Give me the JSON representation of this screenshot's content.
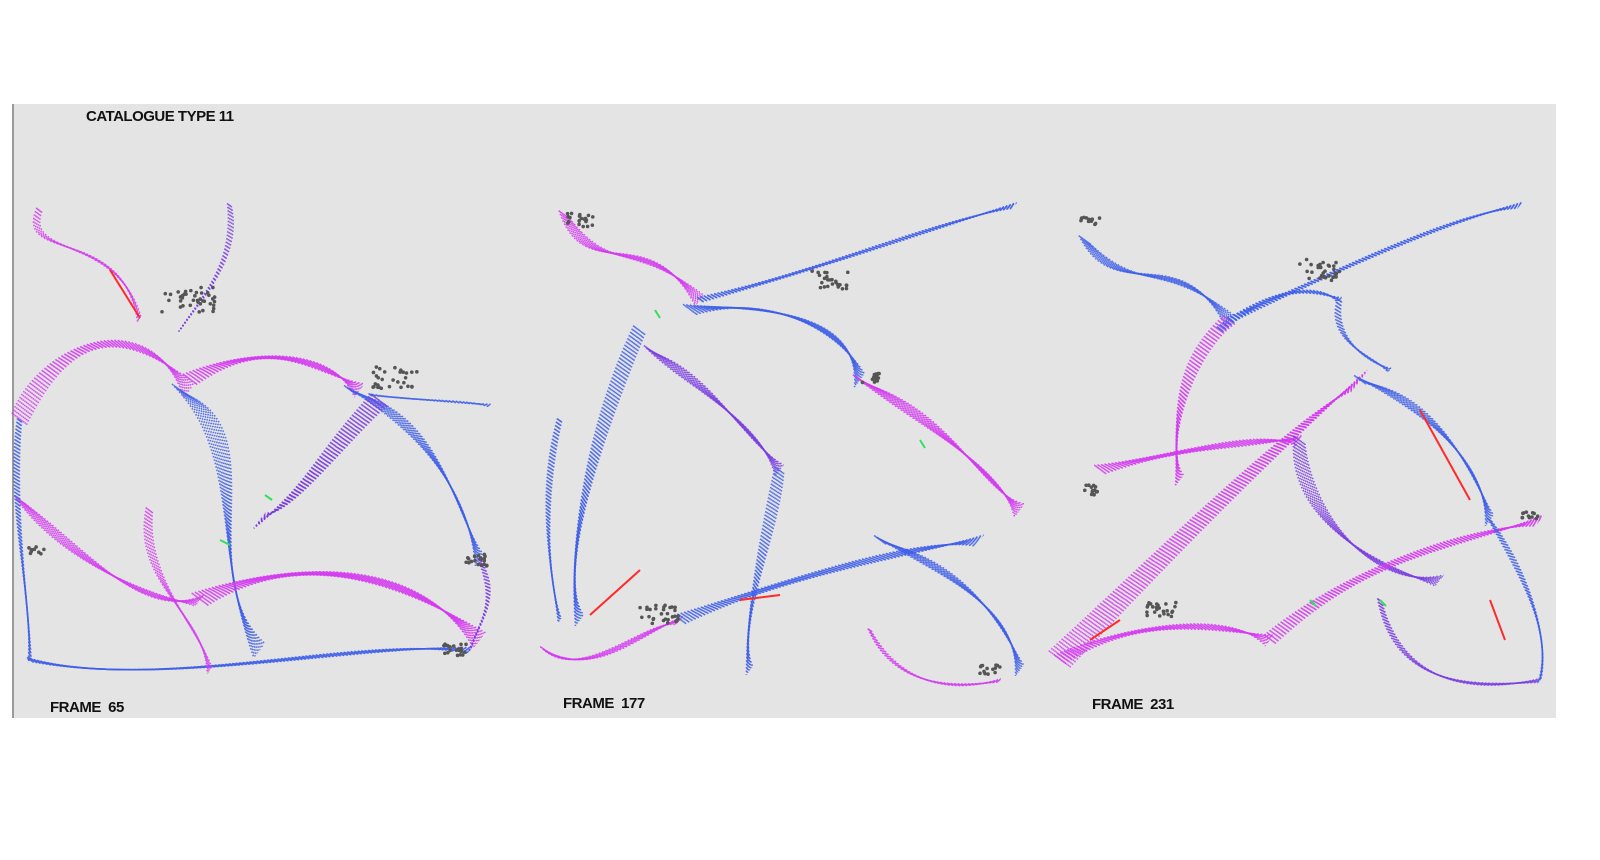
{
  "catalogue": {
    "title": "CATALOGUE TYPE 11"
  },
  "frames": [
    {
      "label": "FRAME  65"
    },
    {
      "label": "FRAME  177"
    },
    {
      "label": "FRAME  231"
    }
  ],
  "colors": {
    "background": "#e4e4e4",
    "blue": "#3f5fe8",
    "violet": "#7a3ce0",
    "magenta": "#d33af0",
    "green": "#33e05a",
    "red": "#ff2a2a",
    "grey": "#555555",
    "light_grey": "#9a9a9a"
  }
}
